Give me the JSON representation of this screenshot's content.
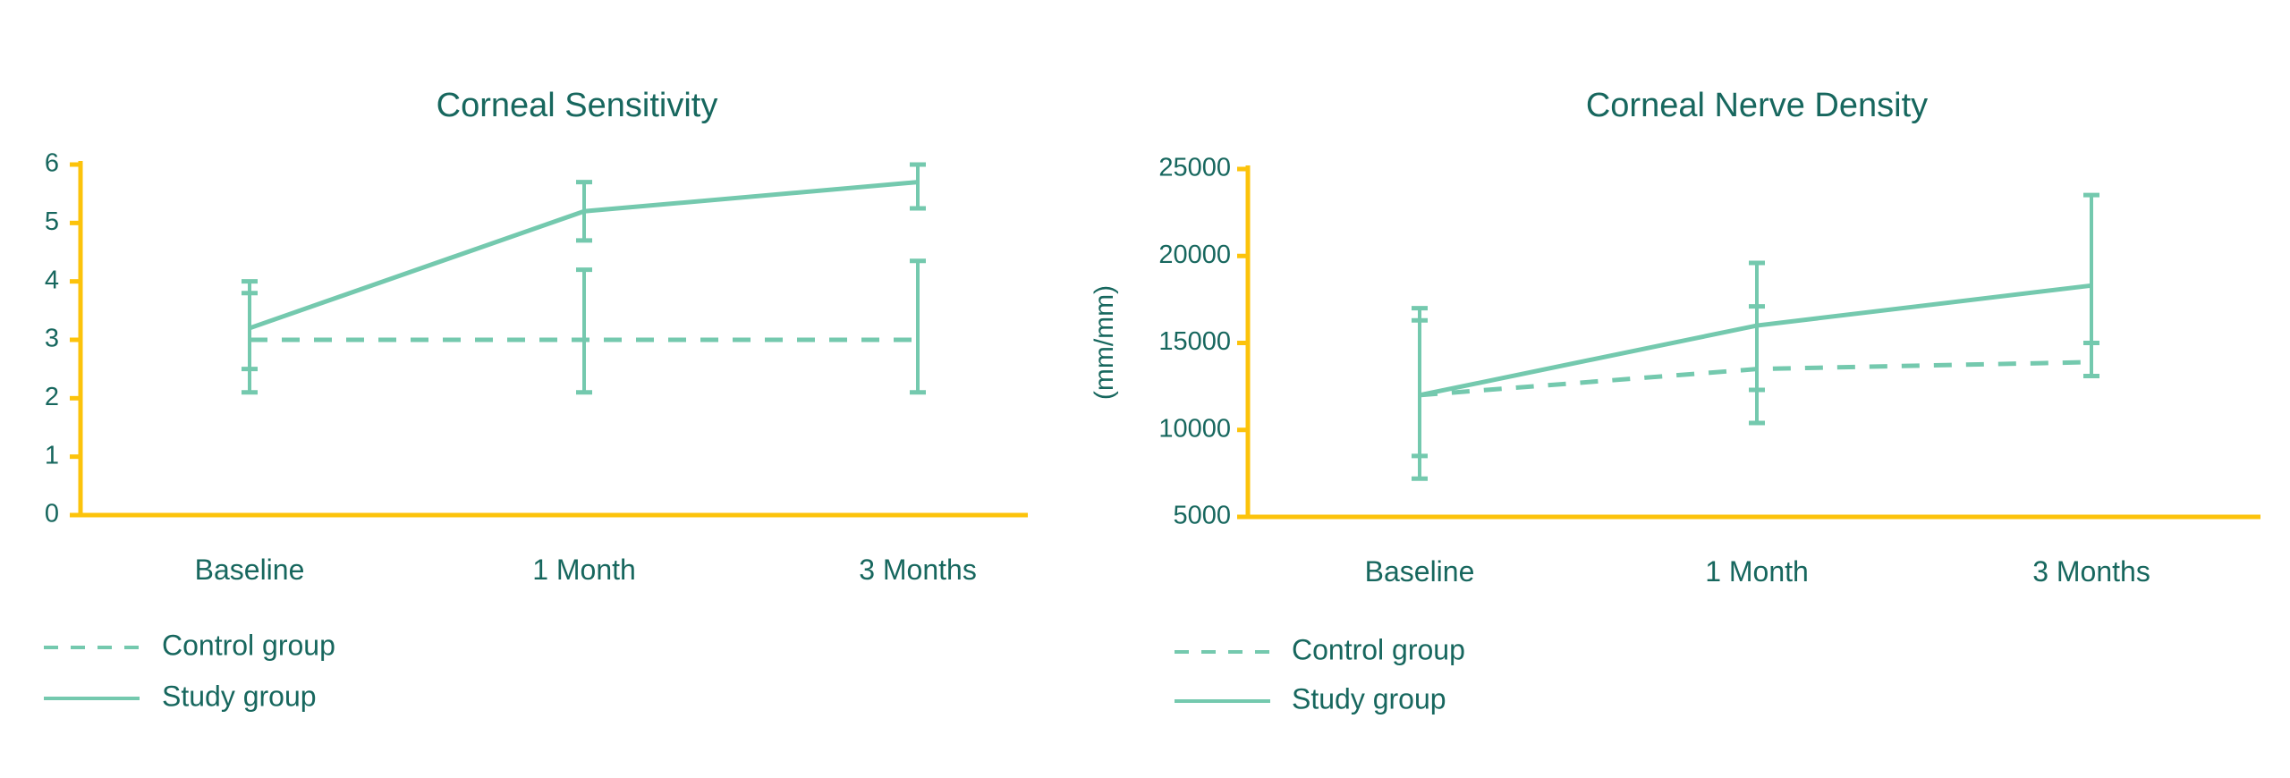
{
  "colors": {
    "line": "#74c9ae",
    "axis": "#fcc30b",
    "text": "#17675e"
  },
  "chart_data": [
    {
      "type": "line",
      "title": "Corneal Sensitivity",
      "xlabel": "",
      "ylabel": "",
      "categories": [
        "Baseline",
        "1 Month",
        "3 Months"
      ],
      "ylim": [
        0,
        6
      ],
      "yticks": [
        "0",
        "1",
        "2",
        "3",
        "4",
        "5",
        "6"
      ],
      "ytick_values": [
        0,
        1,
        2,
        3,
        4,
        5,
        6
      ],
      "legend": "bottom-left",
      "series": [
        {
          "name": "Control group",
          "style": "dashed",
          "values": [
            3,
            3,
            3
          ],
          "err_low": [
            2.1,
            2.1,
            2.1
          ],
          "err_high": [
            3.8,
            4.2,
            4.35
          ]
        },
        {
          "name": "Study group",
          "style": "solid",
          "values": [
            3.2,
            5.2,
            5.7
          ],
          "err_low": [
            2.5,
            4.7,
            5.25
          ],
          "err_high": [
            4.0,
            5.7,
            6.0
          ]
        }
      ]
    },
    {
      "type": "line",
      "title": "Corneal Nerve Density",
      "xlabel": "",
      "ylabel": "(mm/mm)",
      "categories": [
        "Baseline",
        "1 Month",
        "3 Months"
      ],
      "ylim": [
        5000,
        25000
      ],
      "yticks": [
        "5000",
        "10000",
        "15000",
        "20000",
        "25000"
      ],
      "ytick_values": [
        5000,
        10000,
        15000,
        20000,
        25000
      ],
      "legend": "bottom-left",
      "series": [
        {
          "name": "Control group",
          "style": "dashed",
          "values": [
            12000,
            13500,
            13900
          ],
          "err_low": [
            8500,
            10400,
            13100
          ],
          "err_high": [
            17000,
            17100,
            15000
          ]
        },
        {
          "name": "Study group",
          "style": "solid",
          "values": [
            12000,
            16000,
            18300
          ],
          "err_low": [
            7200,
            12300,
            13100
          ],
          "err_high": [
            16300,
            19600,
            23500
          ]
        }
      ]
    }
  ]
}
